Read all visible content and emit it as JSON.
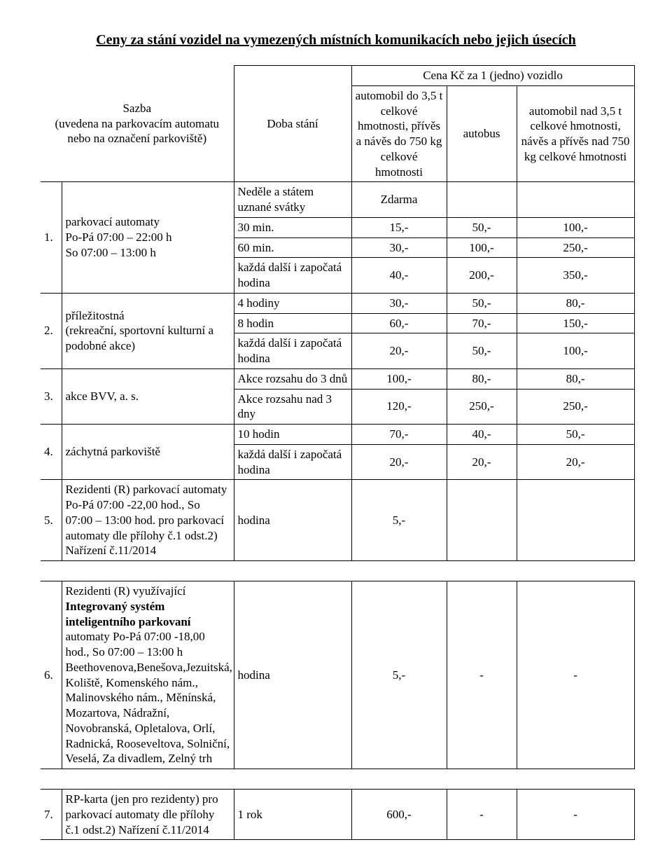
{
  "title": "Ceny za stání vozidel na vymezených místních komunikacích nebo jejich úsecích",
  "header": {
    "sazba": "Sazba\n(uvedena na parkovacím automatu nebo na označení parkoviště)",
    "doba": "Doba stání",
    "cena_top": "Cena Kč za 1 (jedno) vozidlo",
    "vehicle1": "automobil do 3,5 t celkové hmotnosti, přívěs a návěs do 750 kg celkové hmotnosti",
    "vehicle2": "autobus",
    "vehicle3": "automobil nad 3,5 t celkové hmotnosti, návěs a přívěs nad 750 kg celkové hmotnosti"
  },
  "r1": {
    "idx": "1.",
    "desc": "parkovací automaty\nPo-Pá  07:00 – 22:00 h\nSo        07:00 – 13:00 h",
    "free_label": "Neděle a státem uznané svátky",
    "free_value": "Zdarma",
    "d30": "30 min.",
    "v30_1": "15,-",
    "v30_2": "50,-",
    "v30_3": "100,-",
    "d60": "60 min.",
    "v60_1": "30,-",
    "v60_2": "100,-",
    "v60_3": "250,-",
    "dext": "každá další i započatá hodina",
    "vext_1": "40,-",
    "vext_2": "200,-",
    "vext_3": "350,-"
  },
  "r2": {
    "idx": "2.",
    "desc": "příležitostná\n(rekreační, sportovní kulturní a podobné akce)",
    "d4h": "4 hodiny",
    "v4_1": "30,-",
    "v4_2": "50,-",
    "v4_3": "80,-",
    "d8h": "8 hodin",
    "v8_1": "60,-",
    "v8_2": "70,-",
    "v8_3": "150,-",
    "dext": "každá další i započatá hodina",
    "vext_1": "20,-",
    "vext_2": "50,-",
    "vext_3": "100,-"
  },
  "r3": {
    "idx": "3.",
    "desc": "akce BVV, a. s.",
    "da": "Akce rozsahu  do  3 dnů",
    "va_1": "100,-",
    "va_2": "80,-",
    "va_3": "80,-",
    "db": "Akce rozsahu nad 3 dny",
    "vb_1": "120,-",
    "vb_2": "250,-",
    "vb_3": "250,-"
  },
  "r4": {
    "idx": "4.",
    "desc": "záchytná parkoviště",
    "d10": "10 hodin",
    "v10_1": "70,-",
    "v10_2": "40,-",
    "v10_3": "50,-",
    "dext": "každá další i započatá hodina",
    "vext_1": "20,-",
    "vext_2": "20,-",
    "vext_3": "20,-"
  },
  "r5": {
    "idx": "5.",
    "desc": "Rezidenti (R) parkovací automaty Po-Pá 07:00 -22,00 hod., So 07:00 – 13:00 hod. pro parkovací automaty dle přílohy č.1 odst.2) Nařízení  č.11/2014",
    "dur": "hodina",
    "v1": "5,-"
  },
  "r6": {
    "idx": "6.",
    "desc_a": "Rezidenti (R) využívající ",
    "desc_b": "Integrovaný systém inteligentního  parkovaní",
    "desc_c": " automaty Po-Pá 07:00 -18,00 hod., So        07:00 – 13:00 h Beethovenova,Benešova,Jezuitská, Koliště, Komenského nám., Malinovského nám., Měnínská, Mozartova,  Nádražní, Novobranská, Opletalova, Orlí, Radnická, Rooseveltova, Solniční, Veselá, Za divadlem, Zelný trh",
    "dur": "hodina",
    "v1": "5,-",
    "v2": "-",
    "v3": "-"
  },
  "r7": {
    "idx": "7.",
    "desc": "RP-karta (jen pro rezidenty) pro parkovací automaty dle přílohy č.1 odst.2)  Nařízení č.11/2014",
    "dur": "1 rok",
    "v1": "600,-",
    "v2": "-",
    "v3": "-"
  }
}
